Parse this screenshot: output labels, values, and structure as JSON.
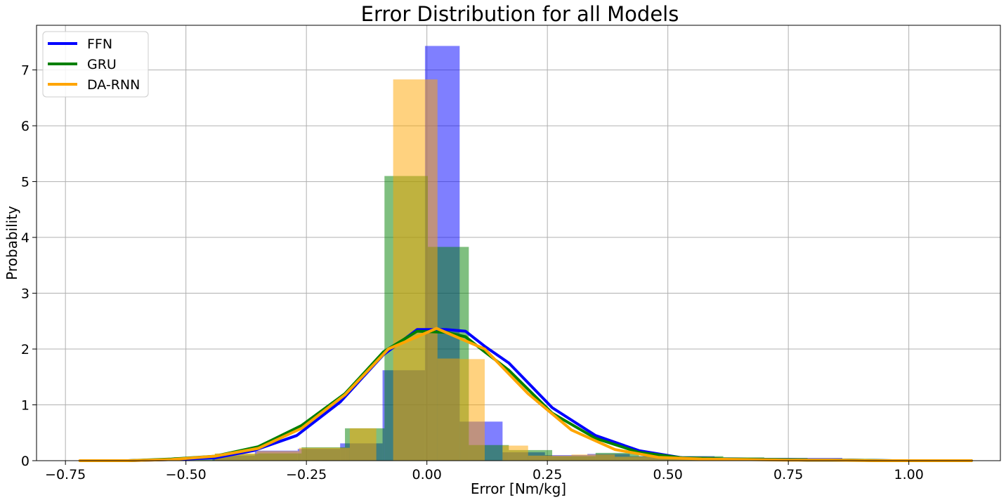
{
  "chart_data": {
    "type": "bar",
    "title": "Error Distribution for all Models",
    "xlabel": "Error [Nm/kg]",
    "ylabel": "Probability",
    "xlim": [
      -0.81,
      1.19
    ],
    "ylim": [
      0,
      7.8
    ],
    "grid": true,
    "legend_position": "top-left",
    "x_ticks": [
      -0.75,
      -0.5,
      -0.25,
      0.0,
      0.25,
      0.5,
      0.75,
      1.0
    ],
    "x_tick_labels": [
      "−0.75",
      "−0.50",
      "−0.25",
      "0.00",
      "0.25",
      "0.50",
      "0.75",
      "1.00"
    ],
    "y_ticks": [
      0,
      1,
      2,
      3,
      4,
      5,
      6,
      7
    ],
    "y_tick_labels": [
      "0",
      "1",
      "2",
      "3",
      "4",
      "5",
      "6",
      "7"
    ],
    "series": [
      {
        "name": "FFN",
        "color": "#0000ff",
        "hist": {
          "bins": [
            {
              "x0": -0.445,
              "x1": -0.357,
              "y": 0.09
            },
            {
              "x0": -0.357,
              "x1": -0.268,
              "y": 0.18
            },
            {
              "x0": -0.268,
              "x1": -0.18,
              "y": 0.21
            },
            {
              "x0": -0.18,
              "x1": -0.092,
              "y": 0.31
            },
            {
              "x0": -0.092,
              "x1": -0.004,
              "y": 1.62
            },
            {
              "x0": -0.004,
              "x1": 0.068,
              "y": 7.43
            },
            {
              "x0": 0.068,
              "x1": 0.157,
              "y": 0.7
            },
            {
              "x0": 0.157,
              "x1": 0.245,
              "y": 0.15
            },
            {
              "x0": 0.245,
              "x1": 0.333,
              "y": 0.1
            },
            {
              "x0": 0.333,
              "x1": 0.421,
              "y": 0.12
            },
            {
              "x0": 0.421,
              "x1": 0.509,
              "y": 0.08
            },
            {
              "x0": 0.509,
              "x1": 0.597,
              "y": 0.08
            },
            {
              "x0": 0.597,
              "x1": 0.686,
              "y": 0.05
            },
            {
              "x0": 0.686,
              "x1": 0.774,
              "y": 0.05
            },
            {
              "x0": 0.774,
              "x1": 0.862,
              "y": 0.05
            },
            {
              "x0": 0.862,
              "x1": 1.13,
              "y": 0.02
            }
          ]
        },
        "curve": {
          "x": [
            -0.7,
            -0.62,
            -0.53,
            -0.44,
            -0.36,
            -0.27,
            -0.18,
            -0.09,
            -0.02,
            0.04,
            0.08,
            0.12,
            0.17,
            0.26,
            0.35,
            0.44,
            0.53,
            0.62,
            0.71,
            0.79,
            0.88,
            0.97,
            1.06,
            1.13
          ],
          "y": [
            0.0,
            0.0,
            0.02,
            0.05,
            0.18,
            0.45,
            1.05,
            1.9,
            2.35,
            2.35,
            2.32,
            2.05,
            1.75,
            0.95,
            0.45,
            0.18,
            0.05,
            0.03,
            0.02,
            0.01,
            0.01,
            0.0,
            0.0,
            0.0
          ]
        }
      },
      {
        "name": "GRU",
        "color": "#008000",
        "hist": {
          "bins": [
            {
              "x0": -0.525,
              "x1": -0.44,
              "y": 0.06
            },
            {
              "x0": -0.44,
              "x1": -0.35,
              "y": 0.12
            },
            {
              "x0": -0.35,
              "x1": -0.26,
              "y": 0.13
            },
            {
              "x0": -0.26,
              "x1": -0.17,
              "y": 0.24
            },
            {
              "x0": -0.17,
              "x1": -0.088,
              "y": 0.58
            },
            {
              "x0": -0.088,
              "x1": 0.002,
              "y": 5.1
            },
            {
              "x0": 0.002,
              "x1": 0.087,
              "y": 3.83
            },
            {
              "x0": 0.087,
              "x1": 0.17,
              "y": 0.28
            },
            {
              "x0": 0.17,
              "x1": 0.26,
              "y": 0.19
            },
            {
              "x0": 0.26,
              "x1": 0.35,
              "y": 0.08
            },
            {
              "x0": 0.35,
              "x1": 0.44,
              "y": 0.14
            },
            {
              "x0": 0.44,
              "x1": 0.525,
              "y": 0.08
            },
            {
              "x0": 0.525,
              "x1": 0.615,
              "y": 0.08
            },
            {
              "x0": 0.615,
              "x1": 0.7,
              "y": 0.06
            },
            {
              "x0": 0.7,
              "x1": 0.79,
              "y": 0.05
            },
            {
              "x0": 0.79,
              "x1": 1.13,
              "y": 0.02
            }
          ]
        },
        "curve": {
          "x": [
            -0.7,
            -0.62,
            -0.53,
            -0.44,
            -0.35,
            -0.26,
            -0.17,
            -0.09,
            -0.02,
            0.04,
            0.08,
            0.12,
            0.17,
            0.26,
            0.35,
            0.44,
            0.53,
            0.62,
            0.71,
            0.79,
            0.88,
            0.97,
            1.06,
            1.13
          ],
          "y": [
            0.0,
            0.0,
            0.03,
            0.08,
            0.25,
            0.63,
            1.2,
            1.95,
            2.32,
            2.3,
            2.22,
            1.95,
            1.62,
            0.85,
            0.4,
            0.15,
            0.05,
            0.03,
            0.02,
            0.01,
            0.01,
            0.0,
            0.0,
            0.0
          ]
        }
      },
      {
        "name": "DA-RNN",
        "color": "#ffa500",
        "hist": {
          "bins": [
            {
              "x0": -0.44,
              "x1": -0.353,
              "y": 0.13
            },
            {
              "x0": -0.353,
              "x1": -0.265,
              "y": 0.17
            },
            {
              "x0": -0.265,
              "x1": -0.16,
              "y": 0.23
            },
            {
              "x0": -0.16,
              "x1": -0.105,
              "y": 0.58
            },
            {
              "x0": -0.07,
              "x1": 0.022,
              "y": 6.83
            },
            {
              "x0": 0.022,
              "x1": 0.068,
              "y": 1.83
            },
            {
              "x0": 0.068,
              "x1": 0.12,
              "y": 1.82
            },
            {
              "x0": 0.157,
              "x1": 0.21,
              "y": 0.27
            },
            {
              "x0": 0.21,
              "x1": 0.3,
              "y": 0.09
            },
            {
              "x0": 0.3,
              "x1": 0.39,
              "y": 0.11
            },
            {
              "x0": 0.39,
              "x1": 0.47,
              "y": 0.07
            },
            {
              "x0": 0.47,
              "x1": 0.56,
              "y": 0.06
            },
            {
              "x0": 0.56,
              "x1": 0.65,
              "y": 0.05
            },
            {
              "x0": 0.65,
              "x1": 0.74,
              "y": 0.04
            },
            {
              "x0": 0.74,
              "x1": 1.13,
              "y": 0.02
            }
          ]
        },
        "curve": {
          "x": [
            -0.72,
            -0.62,
            -0.53,
            -0.44,
            -0.35,
            -0.26,
            -0.17,
            -0.08,
            0.02,
            0.12,
            0.21,
            0.3,
            0.39,
            0.48,
            0.57,
            0.66,
            0.75,
            0.84,
            0.93,
            1.02,
            1.13
          ],
          "y": [
            0.0,
            0.0,
            0.02,
            0.08,
            0.22,
            0.58,
            1.18,
            2.0,
            2.37,
            2.0,
            1.2,
            0.55,
            0.2,
            0.06,
            0.03,
            0.02,
            0.01,
            0.01,
            0.0,
            0.0,
            0.0
          ]
        }
      }
    ]
  }
}
